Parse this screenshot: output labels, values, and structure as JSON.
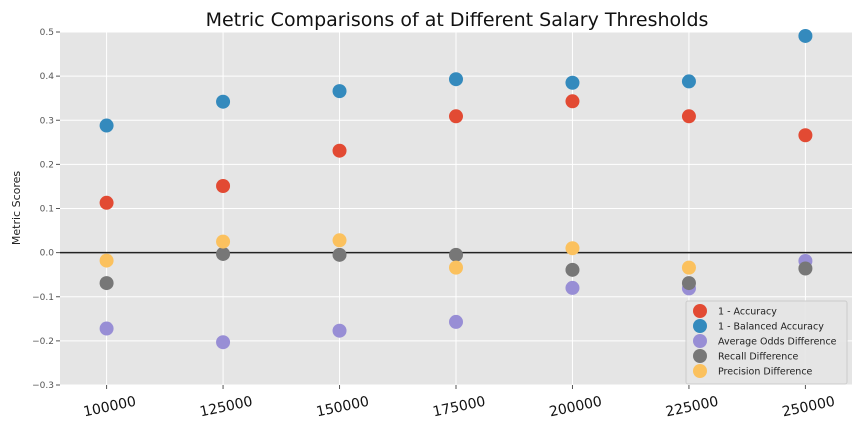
{
  "chart_data": {
    "type": "scatter",
    "title": "Metric Comparisons of at Different Salary Thresholds",
    "xlabel": "",
    "ylabel": "Metric Scores",
    "x": [
      100000,
      125000,
      150000,
      175000,
      200000,
      225000,
      250000
    ],
    "x_tick_labels": [
      "100000",
      "125000",
      "150000",
      "175000",
      "200000",
      "225000",
      "250000"
    ],
    "y_ticks": [
      0.5,
      0.4,
      0.3,
      0.2,
      0.1,
      0.0,
      -0.1,
      -0.2,
      -0.3
    ],
    "y_tick_labels": [
      "0.5",
      "0.4",
      "0.3",
      "0.2",
      "0.1",
      "0.0",
      "−0.1",
      "−0.2",
      "−0.3"
    ],
    "xlim": [
      90000,
      260000
    ],
    "ylim": [
      -0.3,
      0.5
    ],
    "grid": true,
    "zero_line": true,
    "legend_position": "lower-right",
    "series": [
      {
        "name": "1 - Accuracy",
        "color": "#e24a33",
        "values": [
          0.113,
          0.151,
          0.231,
          0.309,
          0.343,
          0.309,
          0.266
        ]
      },
      {
        "name": "1 - Balanced Accuracy",
        "color": "#348abd",
        "values": [
          0.288,
          0.342,
          0.366,
          0.393,
          0.385,
          0.388,
          0.491
        ]
      },
      {
        "name": "Average Odds Difference",
        "color": "#988ed5",
        "values": [
          -0.172,
          -0.203,
          -0.177,
          -0.157,
          -0.08,
          -0.081,
          -0.019
        ]
      },
      {
        "name": "Recall Difference",
        "color": "#777777",
        "values": [
          -0.069,
          -0.003,
          -0.005,
          -0.005,
          -0.039,
          -0.069,
          -0.036
        ]
      },
      {
        "name": "Precision Difference",
        "color": "#fbc15e",
        "values": [
          -0.018,
          0.025,
          0.028,
          -0.034,
          0.01,
          -0.034,
          null
        ]
      }
    ]
  }
}
